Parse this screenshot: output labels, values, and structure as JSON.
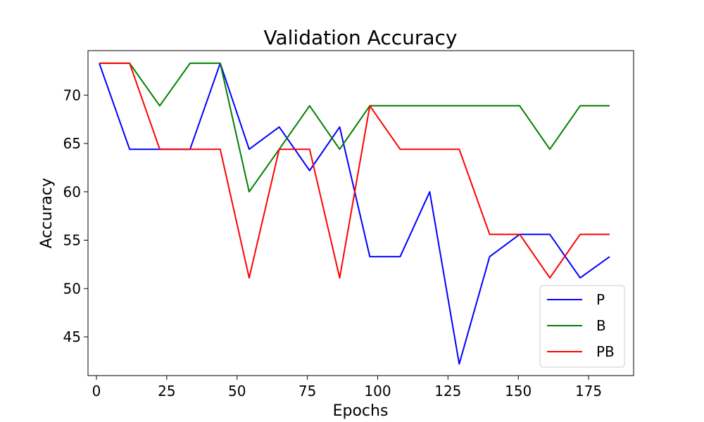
{
  "chart_data": {
    "type": "line",
    "title": "Validation Accuracy",
    "xlabel": "Epochs",
    "ylabel": "Accuracy",
    "xlim": [
      -3,
      191
    ],
    "ylim": [
      41,
      74.6
    ],
    "xticks": [
      0,
      25,
      50,
      75,
      100,
      125,
      150,
      175
    ],
    "yticks": [
      45,
      50,
      55,
      60,
      65,
      70
    ],
    "grid": false,
    "legend_position": "lower-right",
    "x": [
      1,
      11.8,
      22.5,
      33.3,
      44,
      54.3,
      65,
      75.8,
      86.5,
      97.2,
      108,
      118.5,
      129,
      139.8,
      150.5,
      161.2,
      172,
      182.5
    ],
    "series": [
      {
        "name": "P",
        "color": "#0000ff",
        "values": [
          73.3,
          64.4,
          64.4,
          64.4,
          73.3,
          64.4,
          66.7,
          62.2,
          66.7,
          53.3,
          53.3,
          60.0,
          42.2,
          53.3,
          55.6,
          55.6,
          51.1,
          53.3
        ]
      },
      {
        "name": "B",
        "color": "#008000",
        "values": [
          73.3,
          73.3,
          68.9,
          73.3,
          73.3,
          60.0,
          64.4,
          68.9,
          64.4,
          68.9,
          68.9,
          68.9,
          68.9,
          68.9,
          68.9,
          64.4,
          68.9,
          68.9
        ]
      },
      {
        "name": "PB",
        "color": "#ff0000",
        "values": [
          73.3,
          73.3,
          64.4,
          64.4,
          64.4,
          51.1,
          64.4,
          64.4,
          51.1,
          68.9,
          64.4,
          64.4,
          64.4,
          55.6,
          55.6,
          51.1,
          55.6,
          55.6
        ]
      }
    ]
  }
}
